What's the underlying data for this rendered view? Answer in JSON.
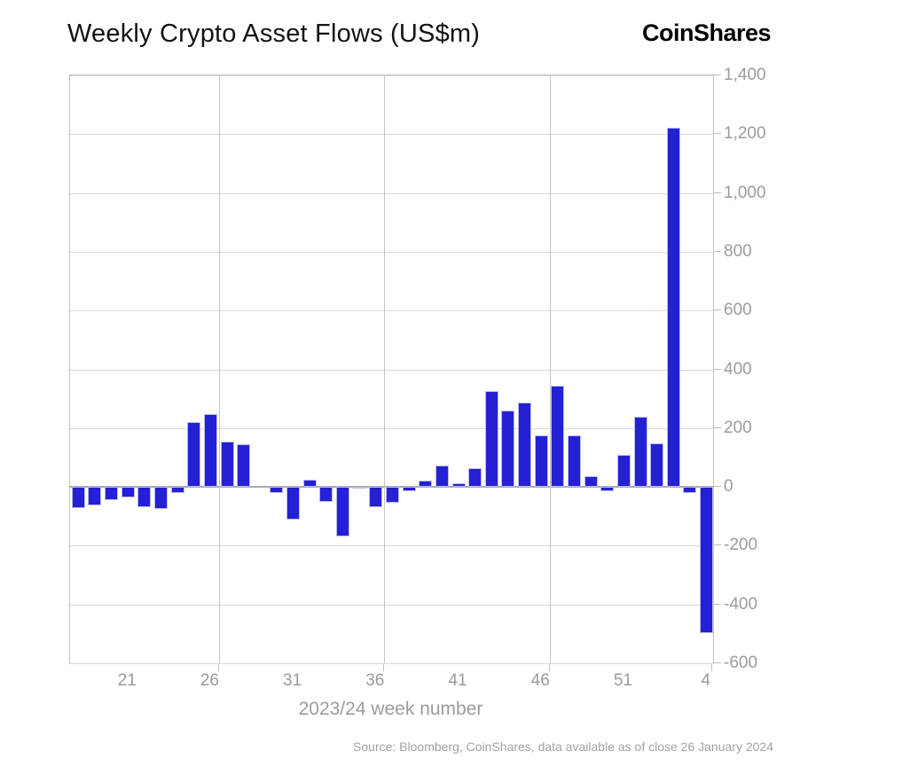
{
  "header": {
    "title": "Weekly Crypto Asset Flows (US$m)",
    "logo": "CoinShares"
  },
  "footer": {
    "source": "Source: Bloomberg, CoinShares, data available as of close 26 January 2024"
  },
  "chart_data": {
    "type": "bar",
    "title": "Weekly Crypto Asset Flows (US$m)",
    "xlabel": "2023/24 week number",
    "ylabel": "",
    "ylim": [
      -600,
      1400
    ],
    "ytick_step": 200,
    "grid": true,
    "legend": "none",
    "bar_color": "#2421d4",
    "y_ticks": [
      {
        "value": 1400,
        "label": "1,400"
      },
      {
        "value": 1200,
        "label": "1,200"
      },
      {
        "value": 1000,
        "label": "1,000"
      },
      {
        "value": 800,
        "label": "800"
      },
      {
        "value": 600,
        "label": "600"
      },
      {
        "value": 400,
        "label": "400"
      },
      {
        "value": 200,
        "label": "200"
      },
      {
        "value": 0,
        "label": "0"
      },
      {
        "value": -200,
        "label": "-200"
      },
      {
        "value": -400,
        "label": "-400"
      },
      {
        "value": -600,
        "label": "-600"
      }
    ],
    "x_ticks": [
      {
        "index": 3,
        "label": "21"
      },
      {
        "index": 8,
        "label": "26"
      },
      {
        "index": 13,
        "label": "31"
      },
      {
        "index": 18,
        "label": "36"
      },
      {
        "index": 23,
        "label": "41"
      },
      {
        "index": 28,
        "label": "46"
      },
      {
        "index": 33,
        "label": "51"
      },
      {
        "index": 38,
        "label": "4"
      }
    ],
    "vertical_gridlines_after_index": [
      8,
      18,
      28
    ],
    "series": [
      {
        "name": "Weekly crypto asset flows (US$m)",
        "weeks": [
          18,
          19,
          20,
          21,
          22,
          23,
          24,
          25,
          26,
          27,
          28,
          29,
          30,
          31,
          32,
          33,
          34,
          35,
          36,
          37,
          38,
          39,
          40,
          41,
          42,
          43,
          44,
          45,
          46,
          47,
          48,
          49,
          50,
          51,
          52,
          1,
          2,
          3,
          4
        ],
        "values": [
          -73,
          -64,
          -46,
          -36,
          -69,
          -76,
          -20,
          220,
          247,
          155,
          145,
          0,
          -22,
          -110,
          23,
          -50,
          -170,
          -7,
          -68,
          -55,
          -15,
          22,
          73,
          12,
          64,
          325,
          259,
          288,
          176,
          343,
          176,
          36,
          -14,
          108,
          238,
          149,
          1222,
          -22,
          -497
        ]
      }
    ]
  }
}
